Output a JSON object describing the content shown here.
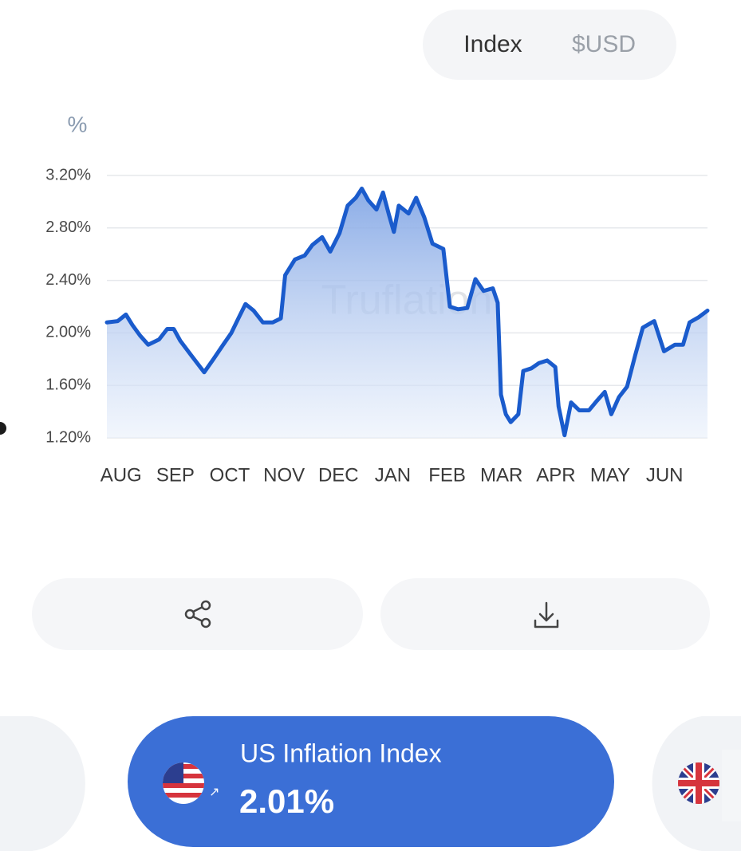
{
  "toggle": {
    "options": [
      "Index",
      "$USD"
    ]
  },
  "chart_data": {
    "type": "line",
    "y_label": "%",
    "watermark": "Truflation",
    "x": [
      -0.26,
      -0.06,
      0.09,
      0.21,
      0.35,
      0.5,
      0.7,
      0.85,
      0.97,
      1.09,
      1.29,
      1.53,
      1.7,
      1.88,
      2.03,
      2.17,
      2.29,
      2.44,
      2.61,
      2.79,
      2.94,
      3.02,
      3.2,
      3.38,
      3.52,
      3.7,
      3.85,
      4.02,
      4.17,
      4.32,
      4.43,
      4.55,
      4.7,
      4.82,
      4.93,
      5.02,
      5.11,
      5.29,
      5.43,
      5.58,
      5.73,
      5.93,
      6.05,
      6.2,
      6.37,
      6.52,
      6.67,
      6.84,
      6.93,
      6.99,
      7.08,
      7.17,
      7.31,
      7.4,
      7.55,
      7.69,
      7.84,
      7.99,
      8.05,
      8.16,
      8.28,
      8.43,
      8.61,
      8.75,
      8.9,
      9.02,
      9.16,
      9.31,
      9.46,
      9.6,
      9.81,
      9.99,
      10.19,
      10.34,
      10.46,
      10.63,
      10.79
    ],
    "series": [
      {
        "color": "#1a5bcc",
        "values": [
          2.08,
          2.09,
          2.14,
          2.06,
          1.98,
          1.91,
          1.95,
          2.03,
          2.03,
          1.94,
          1.83,
          1.7,
          1.8,
          1.91,
          2.0,
          2.12,
          2.22,
          2.17,
          2.08,
          2.08,
          2.11,
          2.44,
          2.56,
          2.59,
          2.67,
          2.73,
          2.62,
          2.76,
          2.97,
          3.03,
          3.1,
          3.01,
          2.94,
          3.07,
          2.9,
          2.77,
          2.97,
          2.91,
          3.03,
          2.88,
          2.68,
          2.64,
          2.2,
          2.18,
          2.19,
          2.41,
          2.32,
          2.34,
          2.23,
          1.53,
          1.38,
          1.32,
          1.38,
          1.71,
          1.73,
          1.77,
          1.79,
          1.74,
          1.44,
          1.22,
          1.47,
          1.41,
          1.41,
          1.48,
          1.55,
          1.38,
          1.51,
          1.59,
          1.83,
          2.04,
          2.09,
          1.86,
          1.91,
          1.91,
          2.08,
          2.12,
          2.17
        ]
      }
    ],
    "xlim": [
      -0.26,
      10.79
    ],
    "xticks": [
      {
        "value": 0,
        "label": "AUG"
      },
      {
        "value": 1,
        "label": "SEP"
      },
      {
        "value": 2,
        "label": "OCT"
      },
      {
        "value": 3,
        "label": "NOV"
      },
      {
        "value": 4,
        "label": "DEC"
      },
      {
        "value": 5,
        "label": "JAN"
      },
      {
        "value": 6,
        "label": "FEB"
      },
      {
        "value": 7,
        "label": "MAR"
      },
      {
        "value": 8,
        "label": "APR"
      },
      {
        "value": 9,
        "label": "MAY"
      },
      {
        "value": 10,
        "label": "JUN"
      }
    ],
    "ylim": [
      1.2,
      3.2
    ],
    "yticks": [
      {
        "value": 1.2,
        "label": "1.20%"
      },
      {
        "value": 1.6,
        "label": "1.60%"
      },
      {
        "value": 2.0,
        "label": "2.00%"
      },
      {
        "value": 2.4,
        "label": "2.40%"
      },
      {
        "value": 2.8,
        "label": "2.80%"
      },
      {
        "value": 3.2,
        "label": "3.20%"
      }
    ],
    "grid": true,
    "area": true
  },
  "card": {
    "title": "US Inflation Index",
    "value": "2.01%"
  }
}
